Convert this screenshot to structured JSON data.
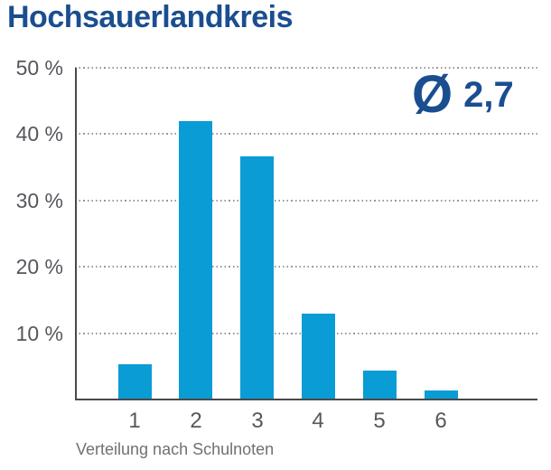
{
  "title": "Hochsauerlandkreis",
  "caption": "Verteilung nach Schulnoten",
  "average": {
    "symbol": "Ø",
    "value": "2,7"
  },
  "colors": {
    "bar": "#0a9cd5",
    "heading_blue": "#1a4e90",
    "axis_line": "#48494b",
    "grid_dot": "#97989a",
    "tick_text": "#55575c",
    "caption_text": "#707174"
  },
  "chart_data": {
    "type": "bar",
    "title": "Hochsauerlandkreis",
    "categories": [
      "1",
      "2",
      "3",
      "4",
      "5",
      "6"
    ],
    "values": [
      5.2,
      41.8,
      36.5,
      12.8,
      4.2,
      1.2
    ],
    "xlabel": "Verteilung nach Schulnoten",
    "ylabel": "",
    "ylim": [
      0,
      50
    ],
    "yticks": [
      {
        "value": 10,
        "label": "10 %"
      },
      {
        "value": 20,
        "label": "20 %"
      },
      {
        "value": 30,
        "label": "30 %"
      },
      {
        "value": 40,
        "label": "40 %"
      },
      {
        "value": 50,
        "label": "50 %"
      }
    ],
    "grid": "horizontal-dotted",
    "legend": "none",
    "annotation": "Ø 2,7"
  }
}
